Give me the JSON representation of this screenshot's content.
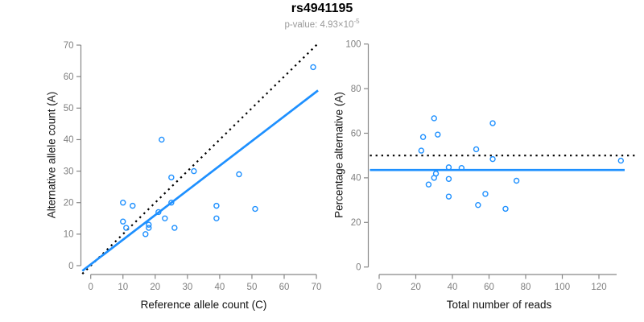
{
  "header": {
    "title": "rs4941195",
    "pvalue_base": "p-value: 4.93×10",
    "pvalue_exponent": "-5"
  },
  "colors": {
    "accent": "#1E90FF",
    "axis": "#878787",
    "tick_text": "#7f7f7f",
    "identity_line": "#000000"
  },
  "chart_data": [
    {
      "type": "scatter",
      "xlabel": "Reference allele count (C)",
      "ylabel": "Alternative allele count (A)",
      "xlim": [
        0,
        70
      ],
      "ylim": [
        0,
        70
      ],
      "xticks": [
        0,
        10,
        20,
        30,
        40,
        50,
        60,
        70
      ],
      "yticks": [
        0,
        10,
        20,
        30,
        40,
        50,
        60,
        70
      ],
      "grid": false,
      "points": [
        [
          10,
          20
        ],
        [
          13,
          19
        ],
        [
          10,
          14
        ],
        [
          11,
          12
        ],
        [
          18,
          13
        ],
        [
          18,
          12
        ],
        [
          17,
          10
        ],
        [
          21,
          17
        ],
        [
          25,
          20
        ],
        [
          23,
          15
        ],
        [
          26,
          12
        ],
        [
          22,
          40
        ],
        [
          25,
          28
        ],
        [
          32,
          30
        ],
        [
          46,
          29
        ],
        [
          39,
          19
        ],
        [
          39,
          15
        ],
        [
          51,
          18
        ],
        [
          69,
          63
        ]
      ],
      "lines": [
        {
          "name": "identity-line",
          "style": "dotted",
          "color": "#000000",
          "slope": 1,
          "intercept": 0
        },
        {
          "name": "regression-line",
          "style": "solid",
          "color": "#1E90FF",
          "slope": 0.783,
          "intercept": 0.4
        }
      ]
    },
    {
      "type": "scatter",
      "xlabel": "Total number of reads",
      "ylabel": "Percentage alternative (A)",
      "xlim": [
        0,
        133
      ],
      "ylim": [
        0,
        100
      ],
      "xticks": [
        0,
        20,
        40,
        60,
        80,
        100,
        120
      ],
      "yticks": [
        0,
        20,
        40,
        60,
        80,
        100
      ],
      "grid": false,
      "points": [
        [
          30,
          66.7
        ],
        [
          32,
          59.4
        ],
        [
          24,
          58.3
        ],
        [
          23,
          52.2
        ],
        [
          31,
          41.9
        ],
        [
          30,
          40.0
        ],
        [
          27,
          37.0
        ],
        [
          38,
          44.7
        ],
        [
          45,
          44.4
        ],
        [
          38,
          39.5
        ],
        [
          38,
          31.6
        ],
        [
          62,
          64.5
        ],
        [
          53,
          52.8
        ],
        [
          62,
          48.4
        ],
        [
          75,
          38.7
        ],
        [
          58,
          32.8
        ],
        [
          54,
          27.8
        ],
        [
          69,
          26.1
        ],
        [
          132,
          47.7
        ]
      ],
      "lines": [
        {
          "name": "expected-50pct-line",
          "style": "dotted",
          "color": "#000000",
          "y": 50
        },
        {
          "name": "mean-percentage-line",
          "style": "solid",
          "color": "#1E90FF",
          "y": 43.5
        }
      ]
    }
  ]
}
